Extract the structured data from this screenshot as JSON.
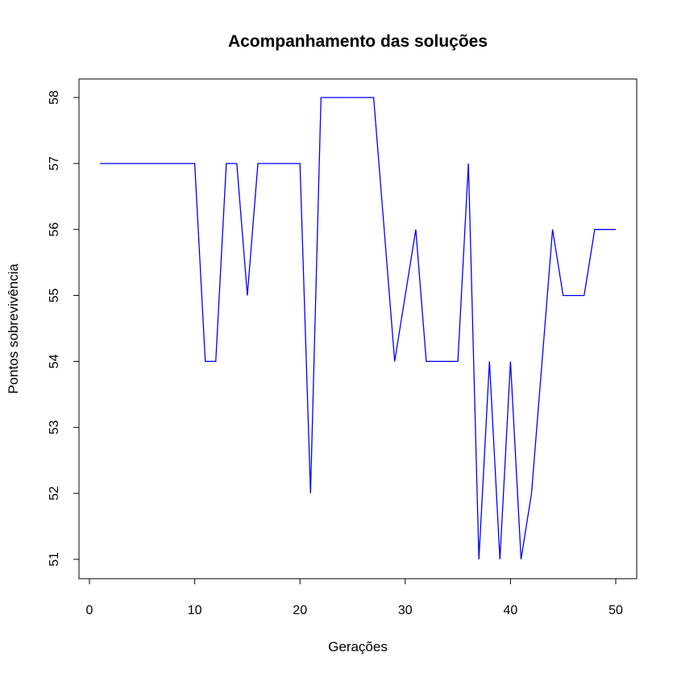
{
  "chart_data": {
    "type": "line",
    "title": "Acompanhamento das soluções",
    "xlabel": "Gerações",
    "ylabel": "Pontos sobrevivência",
    "xlim": [
      0,
      50
    ],
    "ylim": [
      51,
      58
    ],
    "xticks": [
      0,
      10,
      20,
      30,
      40,
      50
    ],
    "yticks": [
      51,
      52,
      53,
      54,
      55,
      56,
      57,
      58
    ],
    "grid": false,
    "line_color": "#0000ff",
    "series": [
      {
        "x": [
          1,
          2,
          3,
          4,
          5,
          6,
          7,
          8,
          9,
          10,
          11,
          12,
          13,
          14,
          15,
          16,
          17,
          18,
          19,
          20,
          21,
          22,
          23,
          24,
          25,
          26,
          27,
          28,
          29,
          30,
          31,
          32,
          33,
          34,
          35,
          36,
          37,
          38,
          39,
          40,
          41,
          42,
          43,
          44,
          45,
          46,
          47,
          48,
          49,
          50
        ],
        "values": [
          57,
          57,
          57,
          57,
          57,
          57,
          57,
          57,
          57,
          57,
          54,
          54,
          57,
          57,
          55,
          57,
          57,
          57,
          57,
          57,
          52,
          58,
          58,
          58,
          58,
          58,
          58,
          56,
          54,
          55,
          56,
          54,
          54,
          54,
          54,
          57,
          51,
          54,
          51,
          54,
          51,
          52,
          54,
          56,
          55,
          55,
          55,
          56,
          56,
          56
        ]
      }
    ]
  }
}
